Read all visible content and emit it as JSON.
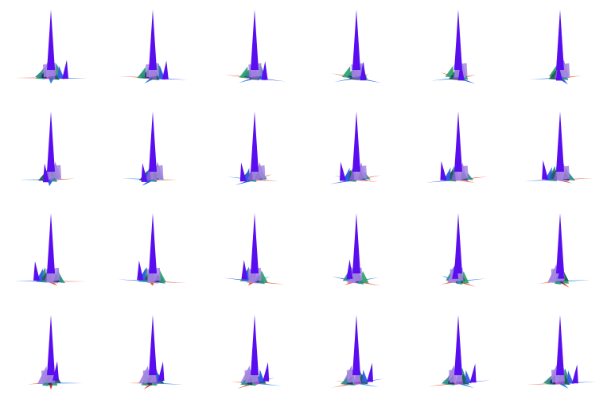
{
  "sprite_sheet": {
    "rows": 4,
    "columns": 6,
    "frame_count": 24,
    "background": "#ffffff",
    "palette": {
      "spike": "#5a0ef0",
      "purple_light": "#a486e0",
      "purple_mid": "#8a5bd6",
      "teal": "#2e8f8a",
      "green": "#2fa36a",
      "dark_green": "#1f5d52",
      "blue": "#2f5ee8",
      "sky_blue": "#2f84e6",
      "red": "#e53a1c",
      "orange": "#f05a20",
      "magenta": "#d447e0",
      "navy": "#20306a"
    },
    "frames": [
      {
        "view_angle": 0
      },
      {
        "view_angle": 15
      },
      {
        "view_angle": 30
      },
      {
        "view_angle": 45
      },
      {
        "view_angle": 60
      },
      {
        "view_angle": 75
      },
      {
        "view_angle": 90
      },
      {
        "view_angle": 105
      },
      {
        "view_angle": 120
      },
      {
        "view_angle": 135
      },
      {
        "view_angle": 150
      },
      {
        "view_angle": 165
      },
      {
        "view_angle": 180
      },
      {
        "view_angle": 195
      },
      {
        "view_angle": 210
      },
      {
        "view_angle": 225
      },
      {
        "view_angle": 240
      },
      {
        "view_angle": 255
      },
      {
        "view_angle": 270
      },
      {
        "view_angle": 285
      },
      {
        "view_angle": 300
      },
      {
        "view_angle": 315
      },
      {
        "view_angle": 330
      },
      {
        "view_angle": 345
      }
    ]
  }
}
